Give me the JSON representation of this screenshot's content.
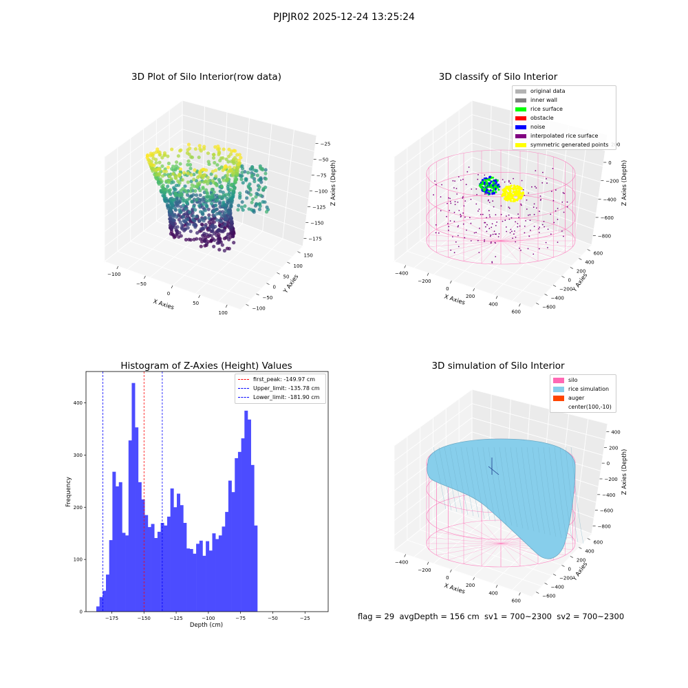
{
  "figure": {
    "title": "PJPJR02 2025-12-24 13:25:24",
    "status_text": "flag = 29  avgDepth = 156 cm  sv1 = 700~2300  sv2 = 700~2300"
  },
  "panels": {
    "raw": {
      "title": "3D Plot of Silo Interior(row data)",
      "xlabel": "X Axies",
      "ylabel": "Y Axies",
      "zlabel": "Z Axies (Depth)",
      "xticks": [
        "−100",
        "−50",
        "0",
        "50",
        "100"
      ],
      "yticks": [
        "−100",
        "−50",
        "0",
        "50",
        "100",
        "150"
      ],
      "zticks": [
        "−25",
        "−50",
        "−75",
        "−100",
        "−125",
        "−150",
        "−175"
      ]
    },
    "classify": {
      "title": "3D classify of Silo Interior",
      "xlabel": "X Axies",
      "ylabel": "Y Axies",
      "zlabel": "Z Axies (Depth)",
      "xticks": [
        "−400",
        "−200",
        "0",
        "200",
        "400",
        "600"
      ],
      "yticks": [
        "−600",
        "−400",
        "−200",
        "0",
        "200",
        "400",
        "600"
      ],
      "zticks": [
        "200",
        "0",
        "−200",
        "−400",
        "−600",
        "−800"
      ],
      "legend": [
        {
          "label": "original data",
          "color": "#b3b3b3"
        },
        {
          "label": "inner wall",
          "color": "#808080"
        },
        {
          "label": "rice surface",
          "color": "#00ff00"
        },
        {
          "label": "obstacle",
          "color": "#ff0000"
        },
        {
          "label": "noise",
          "color": "#0000ff"
        },
        {
          "label": "interpolated rice surface",
          "color": "#800080"
        },
        {
          "label": "symmetric generated points",
          "color": "#ffff00"
        }
      ]
    },
    "simulation": {
      "title": "3D simulation of Silo Interior",
      "xlabel": "X Axies",
      "ylabel": "Y Axies",
      "zlabel": "Z Axies (Depth)",
      "xticks": [
        "−400",
        "−200",
        "0",
        "200",
        "400",
        "600"
      ],
      "yticks": [
        "−600",
        "−400",
        "−200",
        "0",
        "200",
        "400",
        "600"
      ],
      "zticks": [
        "400",
        "200",
        "0",
        "−200",
        "−400",
        "−600",
        "−800"
      ],
      "legend": [
        {
          "label": "silo",
          "color": "#ff69b4"
        },
        {
          "label": "rice simulation",
          "color": "#87ceeb"
        },
        {
          "label": "auger",
          "color": "#ff4500"
        },
        {
          "label": "center(100,-10)",
          "color": ""
        }
      ]
    }
  },
  "chart_data": {
    "type": "bar",
    "title": "Histogram of Z-Axies (Height) Values",
    "xlabel": "Depth (cm)",
    "ylabel": "Frequency",
    "bar_color": "#4c4cff",
    "xlim": [
      -195,
      -7
    ],
    "ylim": [
      0,
      460
    ],
    "xticks": [
      -175,
      -150,
      -125,
      -100,
      -75,
      -50,
      -25
    ],
    "xtick_labels": [
      "−175",
      "−150",
      "−125",
      "−100",
      "−75",
      "−50",
      "−25"
    ],
    "yticks": [
      0,
      100,
      200,
      300,
      400
    ],
    "yticks_labels": [
      "0",
      "100",
      "200",
      "300",
      "400"
    ],
    "bin_start": -187,
    "bin_width": 2.5,
    "values": [
      10,
      28,
      40,
      71,
      137,
      268,
      240,
      248,
      151,
      146,
      328,
      438,
      353,
      248,
      215,
      185,
      162,
      168,
      141,
      153,
      170,
      165,
      182,
      236,
      200,
      226,
      204,
      170,
      121,
      120,
      111,
      130,
      136,
      107,
      135,
      117,
      150,
      139,
      146,
      163,
      191,
      251,
      229,
      294,
      306,
      332,
      385,
      368,
      281,
      165
    ],
    "vlines": [
      {
        "label": "first_peak: -149.97 cm",
        "x": -149.97,
        "color": "#ff0000"
      },
      {
        "label": "Upper_limit: -135.78 cm",
        "x": -135.78,
        "color": "#0000ff"
      },
      {
        "label": "Lower_limit: -181.90 cm",
        "x": -181.9,
        "color": "#0000ff"
      }
    ],
    "legend_position": "upper right"
  }
}
